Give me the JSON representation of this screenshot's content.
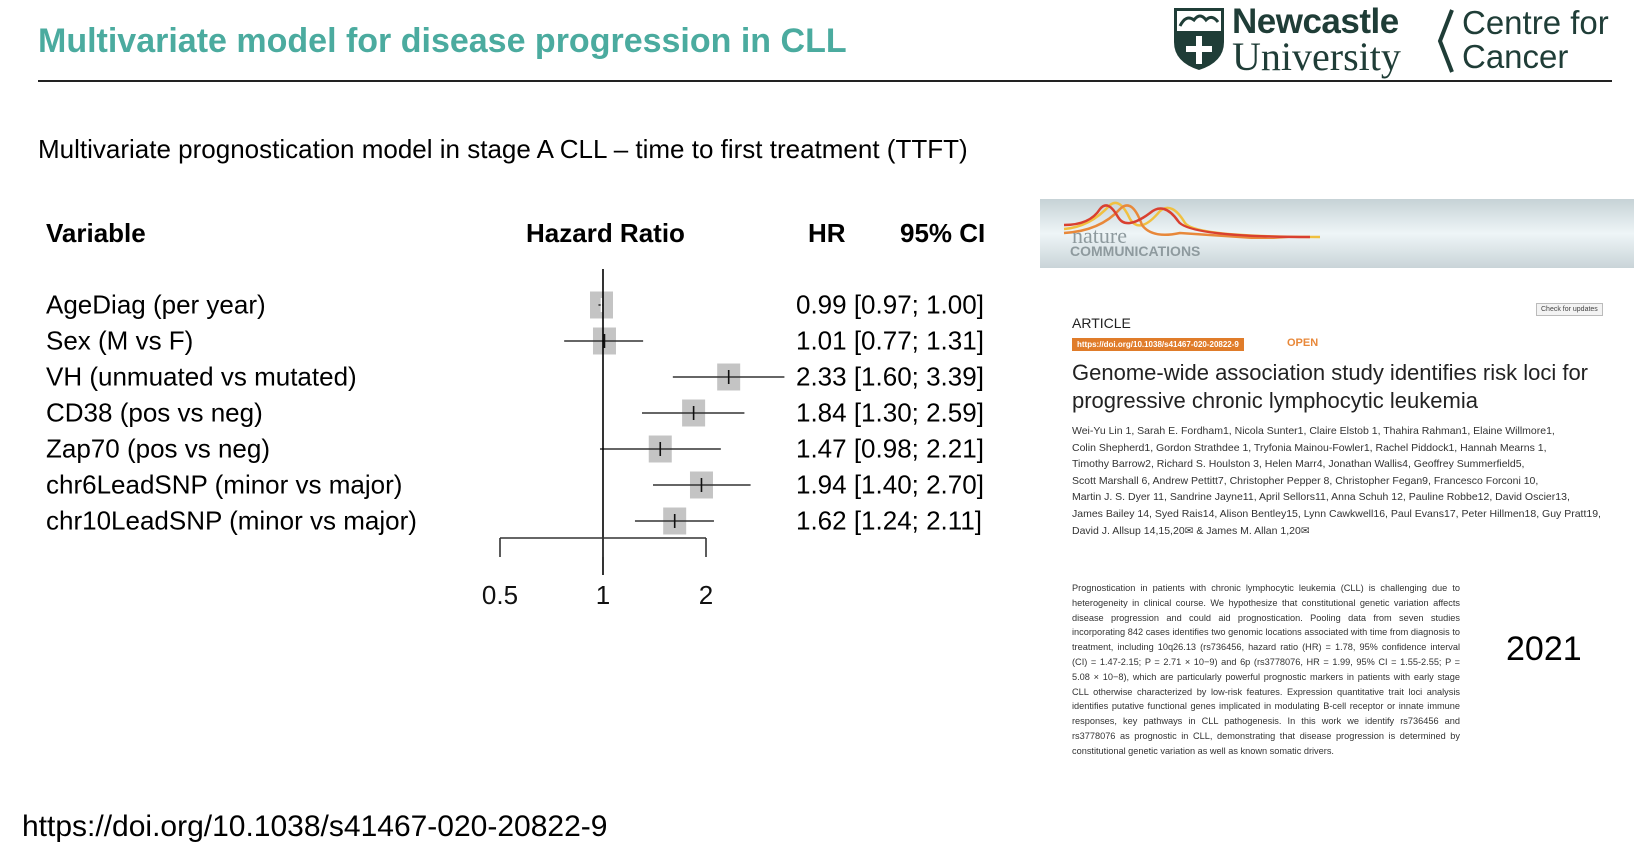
{
  "slide": {
    "title": "Multivariate model for disease progression in CLL",
    "title_color": "#4bab9f",
    "subtitle": "Multivariate prognostication model in stage A CLL – time to first treatment (TTFT)",
    "year": "2021",
    "doi": "https://doi.org/10.1038/s41467-020-20822-9"
  },
  "logo": {
    "line1": "Newcastle",
    "line2": "University",
    "centre1": "Centre for",
    "centre2": "Cancer",
    "color": "#1f3d37"
  },
  "chart_data": {
    "type": "forest",
    "headers": {
      "variable": "Variable",
      "plot": "Hazard Ratio",
      "hr": "HR",
      "ci": "95% CI"
    },
    "x_scale": "log",
    "xlim": [
      0.5,
      2
    ],
    "ticks": [
      "0.5",
      "1",
      "2"
    ],
    "reference": 1,
    "rows": [
      {
        "label": "AgeDiag (per year)",
        "hr": 0.99,
        "lo": 0.97,
        "hi": 1.0,
        "text": "0.99 [0.97; 1.00]"
      },
      {
        "label": "Sex (M vs F)",
        "hr": 1.01,
        "lo": 0.77,
        "hi": 1.31,
        "text": "1.01 [0.77; 1.31]"
      },
      {
        "label": "VH (unmuated vs mutated)",
        "hr": 2.33,
        "lo": 1.6,
        "hi": 3.39,
        "text": "2.33 [1.60; 3.39]"
      },
      {
        "label": "CD38 (pos vs neg)",
        "hr": 1.84,
        "lo": 1.3,
        "hi": 2.59,
        "text": "1.84 [1.30; 2.59]"
      },
      {
        "label": "Zap70 (pos vs neg)",
        "hr": 1.47,
        "lo": 0.98,
        "hi": 2.21,
        "text": "1.47 [0.98; 2.21]"
      },
      {
        "label": "chr6LeadSNP (minor vs major)",
        "hr": 1.94,
        "lo": 1.4,
        "hi": 2.7,
        "text": "1.94 [1.40; 2.70]"
      },
      {
        "label": "chr10LeadSNP (minor vs major)",
        "hr": 1.62,
        "lo": 1.24,
        "hi": 2.11,
        "text": "1.62 [1.24; 2.11]"
      }
    ]
  },
  "paper": {
    "journal1": "nature",
    "journal2": "COMMUNICATIONS",
    "type": "ARTICLE",
    "doi_badge": "https://doi.org/10.1038/s41467-020-20822-9",
    "open": "OPEN",
    "check": "Check for updates",
    "title": "Genome-wide association study identifies risk loci for progressive chronic lymphocytic leukemia",
    "authors": [
      "Wei-Yu Lin 1, Sarah E. Fordham1, Nicola Sunter1, Claire Elstob 1, Thahira Rahman1, Elaine Willmore1,",
      "Colin Shepherd1, Gordon Strathdee 1, Tryfonia Mainou-Fowler1, Rachel Piddock1, Hannah Mearns 1,",
      "Timothy Barrow2, Richard S. Houlston 3, Helen Marr4, Jonathan Wallis4, Geoffrey Summerfield5,",
      "Scott Marshall 6, Andrew Pettitt7, Christopher Pepper 8, Christopher Fegan9, Francesco Forconi 10,",
      "Martin J. S. Dyer 11, Sandrine Jayne11, April Sellors11, Anna Schuh 12, Pauline Robbe12, David Oscier13,",
      "James Bailey 14, Syed Rais14, Alison Bentley15, Lynn Cawkwell16, Paul Evans17, Peter Hillmen18, Guy Pratt19,",
      "David J. Allsup 14,15,20✉ & James M. Allan 1,20✉"
    ],
    "abstract": "Prognostication in patients with chronic lymphocytic leukemia (CLL) is challenging due to heterogeneity in clinical course. We hypothesize that constitutional genetic variation affects disease progression and could aid prognostication. Pooling data from seven studies incorporating 842 cases identifies two genomic locations associated with time from diagnosis to treatment, including 10q26.13 (rs736456, hazard ratio (HR) = 1.78, 95% confidence interval (CI) = 1.47-2.15; P = 2.71 × 10−9) and 6p (rs3778076, HR = 1.99, 95% CI = 1.55-2.55; P = 5.08 × 10−8), which are particularly powerful prognostic markers in patients with early stage CLL otherwise characterized by low-risk features. Expression quantitative trait loci analysis identifies putative functional genes implicated in modulating B-cell receptor or innate immune responses, key pathways in CLL pathogenesis. In this work we identify rs736456 and rs3778076 as prognostic in CLL, demonstrating that disease progression is determined by constitutional genetic variation as well as known somatic drivers."
  }
}
